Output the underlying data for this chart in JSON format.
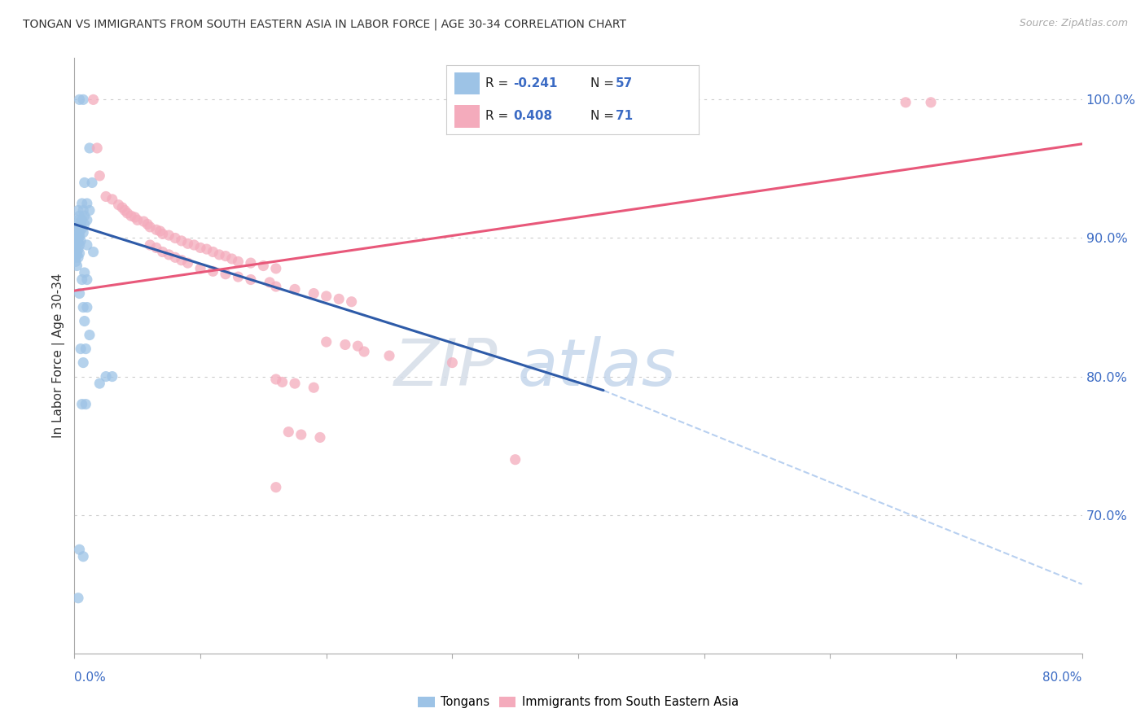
{
  "title": "TONGAN VS IMMIGRANTS FROM SOUTH EASTERN ASIA IN LABOR FORCE | AGE 30-34 CORRELATION CHART",
  "source": "Source: ZipAtlas.com",
  "ylabel": "In Labor Force | Age 30-34",
  "xmin": 0.0,
  "xmax": 0.8,
  "ymin": 0.6,
  "ymax": 1.03,
  "yticks": [
    0.7,
    0.8,
    0.9,
    1.0
  ],
  "ytick_labels": [
    "70.0%",
    "80.0%",
    "90.0%",
    "100.0%"
  ],
  "blue_color": "#9DC3E6",
  "pink_color": "#F4ABBC",
  "blue_line_color": "#2E5BA8",
  "pink_line_color": "#E8587A",
  "dashed_color": "#B8D0F0",
  "watermark_zip": "ZIP",
  "watermark_atlas": "atlas",
  "blue_dots": [
    [
      0.004,
      1.0
    ],
    [
      0.007,
      1.0
    ],
    [
      0.012,
      0.965
    ],
    [
      0.008,
      0.94
    ],
    [
      0.014,
      0.94
    ],
    [
      0.006,
      0.925
    ],
    [
      0.01,
      0.925
    ],
    [
      0.003,
      0.92
    ],
    [
      0.007,
      0.92
    ],
    [
      0.012,
      0.92
    ],
    [
      0.004,
      0.916
    ],
    [
      0.008,
      0.916
    ],
    [
      0.003,
      0.913
    ],
    [
      0.006,
      0.913
    ],
    [
      0.01,
      0.913
    ],
    [
      0.002,
      0.91
    ],
    [
      0.005,
      0.91
    ],
    [
      0.008,
      0.91
    ],
    [
      0.003,
      0.907
    ],
    [
      0.006,
      0.907
    ],
    [
      0.002,
      0.904
    ],
    [
      0.004,
      0.904
    ],
    [
      0.007,
      0.904
    ],
    [
      0.002,
      0.901
    ],
    [
      0.004,
      0.901
    ],
    [
      0.001,
      0.898
    ],
    [
      0.003,
      0.898
    ],
    [
      0.005,
      0.898
    ],
    [
      0.002,
      0.895
    ],
    [
      0.004,
      0.895
    ],
    [
      0.001,
      0.892
    ],
    [
      0.003,
      0.892
    ],
    [
      0.002,
      0.889
    ],
    [
      0.004,
      0.889
    ],
    [
      0.001,
      0.886
    ],
    [
      0.003,
      0.886
    ],
    [
      0.001,
      0.883
    ],
    [
      0.002,
      0.88
    ],
    [
      0.01,
      0.895
    ],
    [
      0.015,
      0.89
    ],
    [
      0.008,
      0.875
    ],
    [
      0.006,
      0.87
    ],
    [
      0.01,
      0.87
    ],
    [
      0.004,
      0.86
    ],
    [
      0.007,
      0.85
    ],
    [
      0.01,
      0.85
    ],
    [
      0.008,
      0.84
    ],
    [
      0.012,
      0.83
    ],
    [
      0.005,
      0.82
    ],
    [
      0.009,
      0.82
    ],
    [
      0.007,
      0.81
    ],
    [
      0.025,
      0.8
    ],
    [
      0.03,
      0.8
    ],
    [
      0.02,
      0.795
    ],
    [
      0.006,
      0.78
    ],
    [
      0.009,
      0.78
    ],
    [
      0.004,
      0.675
    ],
    [
      0.007,
      0.67
    ],
    [
      0.003,
      0.64
    ]
  ],
  "pink_dots": [
    [
      0.015,
      1.0
    ],
    [
      0.66,
      0.998
    ],
    [
      0.68,
      0.998
    ],
    [
      0.018,
      0.965
    ],
    [
      0.02,
      0.945
    ],
    [
      0.025,
      0.93
    ],
    [
      0.03,
      0.928
    ],
    [
      0.035,
      0.924
    ],
    [
      0.038,
      0.922
    ],
    [
      0.04,
      0.92
    ],
    [
      0.042,
      0.918
    ],
    [
      0.045,
      0.916
    ],
    [
      0.048,
      0.915
    ],
    [
      0.05,
      0.913
    ],
    [
      0.055,
      0.912
    ],
    [
      0.058,
      0.91
    ],
    [
      0.06,
      0.908
    ],
    [
      0.065,
      0.906
    ],
    [
      0.068,
      0.905
    ],
    [
      0.07,
      0.903
    ],
    [
      0.075,
      0.902
    ],
    [
      0.08,
      0.9
    ],
    [
      0.085,
      0.898
    ],
    [
      0.09,
      0.896
    ],
    [
      0.095,
      0.895
    ],
    [
      0.1,
      0.893
    ],
    [
      0.105,
      0.892
    ],
    [
      0.11,
      0.89
    ],
    [
      0.115,
      0.888
    ],
    [
      0.12,
      0.887
    ],
    [
      0.125,
      0.885
    ],
    [
      0.13,
      0.883
    ],
    [
      0.14,
      0.882
    ],
    [
      0.15,
      0.88
    ],
    [
      0.16,
      0.878
    ],
    [
      0.06,
      0.895
    ],
    [
      0.065,
      0.893
    ],
    [
      0.07,
      0.89
    ],
    [
      0.075,
      0.888
    ],
    [
      0.08,
      0.886
    ],
    [
      0.085,
      0.884
    ],
    [
      0.09,
      0.882
    ],
    [
      0.1,
      0.878
    ],
    [
      0.11,
      0.876
    ],
    [
      0.12,
      0.874
    ],
    [
      0.13,
      0.872
    ],
    [
      0.14,
      0.87
    ],
    [
      0.155,
      0.868
    ],
    [
      0.16,
      0.865
    ],
    [
      0.175,
      0.863
    ],
    [
      0.19,
      0.86
    ],
    [
      0.2,
      0.858
    ],
    [
      0.21,
      0.856
    ],
    [
      0.22,
      0.854
    ],
    [
      0.2,
      0.825
    ],
    [
      0.215,
      0.823
    ],
    [
      0.225,
      0.822
    ],
    [
      0.23,
      0.818
    ],
    [
      0.25,
      0.815
    ],
    [
      0.3,
      0.81
    ],
    [
      0.16,
      0.798
    ],
    [
      0.165,
      0.796
    ],
    [
      0.175,
      0.795
    ],
    [
      0.19,
      0.792
    ],
    [
      0.17,
      0.76
    ],
    [
      0.18,
      0.758
    ],
    [
      0.195,
      0.756
    ],
    [
      0.35,
      0.74
    ],
    [
      0.16,
      0.72
    ]
  ],
  "blue_line_x": [
    0.0,
    0.42
  ],
  "blue_line_y": [
    0.91,
    0.79
  ],
  "dashed_line_x": [
    0.42,
    0.8
  ],
  "dashed_line_y": [
    0.79,
    0.65
  ],
  "pink_line_x": [
    0.0,
    0.8
  ],
  "pink_line_y": [
    0.862,
    0.968
  ]
}
